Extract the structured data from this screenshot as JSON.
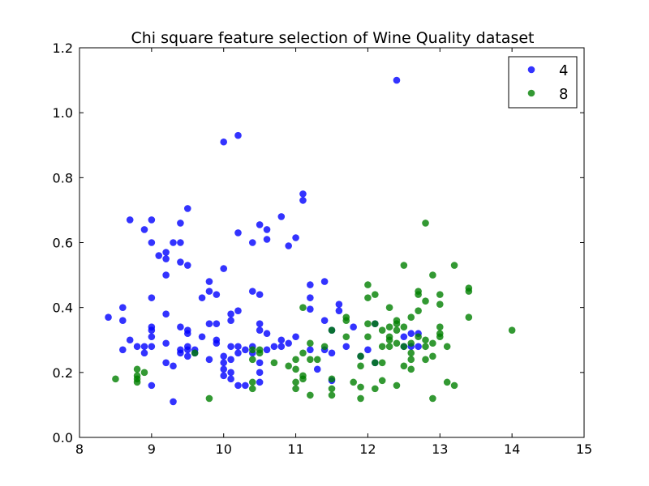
{
  "chart_data": {
    "type": "scatter",
    "title": "Chi square feature selection of Wine Quality dataset",
    "xlabel": "",
    "ylabel": "",
    "xlim": [
      8,
      15
    ],
    "ylim": [
      0.0,
      1.2
    ],
    "xticks": [
      "8",
      "9",
      "10",
      "11",
      "12",
      "13",
      "14",
      "15"
    ],
    "yticks": [
      "0.0",
      "0.2",
      "0.4",
      "0.6",
      "0.8",
      "1.0",
      "1.2"
    ],
    "grid": false,
    "legend_position": "top-right",
    "series": [
      {
        "name": "4",
        "color": "#0000ff",
        "points": [
          [
            8.4,
            0.37
          ],
          [
            8.6,
            0.4
          ],
          [
            8.6,
            0.36
          ],
          [
            8.6,
            0.27
          ],
          [
            8.7,
            0.67
          ],
          [
            8.7,
            0.3
          ],
          [
            8.8,
            0.28
          ],
          [
            8.9,
            0.64
          ],
          [
            8.9,
            0.28
          ],
          [
            8.9,
            0.26
          ],
          [
            9.0,
            0.67
          ],
          [
            9.0,
            0.6
          ],
          [
            9.0,
            0.43
          ],
          [
            9.0,
            0.34
          ],
          [
            9.0,
            0.33
          ],
          [
            9.0,
            0.31
          ],
          [
            9.0,
            0.28
          ],
          [
            9.0,
            0.16
          ],
          [
            9.1,
            0.56
          ],
          [
            9.2,
            0.57
          ],
          [
            9.2,
            0.55
          ],
          [
            9.2,
            0.5
          ],
          [
            9.2,
            0.38
          ],
          [
            9.2,
            0.29
          ],
          [
            9.2,
            0.23
          ],
          [
            9.3,
            0.6
          ],
          [
            9.3,
            0.22
          ],
          [
            9.3,
            0.11
          ],
          [
            9.4,
            0.66
          ],
          [
            9.4,
            0.6
          ],
          [
            9.4,
            0.54
          ],
          [
            9.4,
            0.34
          ],
          [
            9.4,
            0.27
          ],
          [
            9.4,
            0.26
          ],
          [
            9.5,
            0.705
          ],
          [
            9.5,
            0.53
          ],
          [
            9.5,
            0.33
          ],
          [
            9.5,
            0.32
          ],
          [
            9.5,
            0.28
          ],
          [
            9.5,
            0.27
          ],
          [
            9.5,
            0.25
          ],
          [
            9.6,
            0.27
          ],
          [
            9.6,
            0.26
          ],
          [
            9.7,
            0.43
          ],
          [
            9.7,
            0.31
          ],
          [
            9.8,
            0.48
          ],
          [
            9.8,
            0.45
          ],
          [
            9.8,
            0.35
          ],
          [
            9.8,
            0.24
          ],
          [
            9.9,
            0.44
          ],
          [
            9.9,
            0.35
          ],
          [
            9.9,
            0.3
          ],
          [
            9.9,
            0.29
          ],
          [
            10.0,
            0.91
          ],
          [
            10.0,
            0.52
          ],
          [
            10.0,
            0.25
          ],
          [
            10.0,
            0.23
          ],
          [
            10.0,
            0.21
          ],
          [
            10.0,
            0.19
          ],
          [
            10.1,
            0.38
          ],
          [
            10.1,
            0.36
          ],
          [
            10.1,
            0.28
          ],
          [
            10.1,
            0.24
          ],
          [
            10.1,
            0.2
          ],
          [
            10.1,
            0.18
          ],
          [
            10.2,
            0.93
          ],
          [
            10.2,
            0.63
          ],
          [
            10.2,
            0.39
          ],
          [
            10.2,
            0.28
          ],
          [
            10.2,
            0.26
          ],
          [
            10.2,
            0.16
          ],
          [
            10.3,
            0.27
          ],
          [
            10.3,
            0.16
          ],
          [
            10.4,
            0.6
          ],
          [
            10.4,
            0.45
          ],
          [
            10.4,
            0.28
          ],
          [
            10.4,
            0.26
          ],
          [
            10.5,
            0.655
          ],
          [
            10.5,
            0.44
          ],
          [
            10.5,
            0.35
          ],
          [
            10.5,
            0.33
          ],
          [
            10.5,
            0.23
          ],
          [
            10.5,
            0.2
          ],
          [
            10.5,
            0.17
          ],
          [
            10.6,
            0.64
          ],
          [
            10.6,
            0.61
          ],
          [
            10.6,
            0.32
          ],
          [
            10.6,
            0.27
          ],
          [
            10.7,
            0.28
          ],
          [
            10.8,
            0.68
          ],
          [
            10.8,
            0.3
          ],
          [
            10.8,
            0.28
          ],
          [
            10.9,
            0.59
          ],
          [
            10.9,
            0.29
          ],
          [
            11.0,
            0.615
          ],
          [
            11.0,
            0.31
          ],
          [
            11.1,
            0.75
          ],
          [
            11.1,
            0.73
          ],
          [
            11.2,
            0.47
          ],
          [
            11.2,
            0.43
          ],
          [
            11.2,
            0.395
          ],
          [
            11.2,
            0.27
          ],
          [
            11.3,
            0.21
          ],
          [
            11.4,
            0.48
          ],
          [
            11.4,
            0.36
          ],
          [
            11.4,
            0.27
          ],
          [
            11.5,
            0.33
          ],
          [
            11.5,
            0.26
          ],
          [
            11.5,
            0.175
          ],
          [
            11.6,
            0.41
          ],
          [
            11.6,
            0.39
          ],
          [
            11.7,
            0.28
          ],
          [
            11.8,
            0.34
          ],
          [
            11.9,
            0.25
          ],
          [
            12.0,
            0.27
          ],
          [
            12.1,
            0.35
          ],
          [
            12.1,
            0.23
          ],
          [
            12.4,
            1.1
          ],
          [
            12.5,
            0.31
          ],
          [
            12.5,
            0.28
          ],
          [
            12.6,
            0.32
          ],
          [
            12.6,
            0.28
          ],
          [
            12.7,
            0.32
          ],
          [
            12.7,
            0.28
          ]
        ]
      },
      {
        "name": "8",
        "color": "#008000",
        "points": [
          [
            8.5,
            0.18
          ],
          [
            8.8,
            0.21
          ],
          [
            8.8,
            0.19
          ],
          [
            8.8,
            0.18
          ],
          [
            8.8,
            0.17
          ],
          [
            8.9,
            0.2
          ],
          [
            9.6,
            0.26
          ],
          [
            9.8,
            0.12
          ],
          [
            10.4,
            0.27
          ],
          [
            10.4,
            0.24
          ],
          [
            10.4,
            0.17
          ],
          [
            10.4,
            0.15
          ],
          [
            10.5,
            0.27
          ],
          [
            10.5,
            0.26
          ],
          [
            10.7,
            0.23
          ],
          [
            10.9,
            0.22
          ],
          [
            11.0,
            0.24
          ],
          [
            11.0,
            0.21
          ],
          [
            11.0,
            0.17
          ],
          [
            11.0,
            0.15
          ],
          [
            11.1,
            0.4
          ],
          [
            11.1,
            0.26
          ],
          [
            11.1,
            0.19
          ],
          [
            11.1,
            0.18
          ],
          [
            11.2,
            0.29
          ],
          [
            11.2,
            0.24
          ],
          [
            11.2,
            0.13
          ],
          [
            11.3,
            0.24
          ],
          [
            11.4,
            0.28
          ],
          [
            11.5,
            0.33
          ],
          [
            11.5,
            0.18
          ],
          [
            11.5,
            0.15
          ],
          [
            11.5,
            0.13
          ],
          [
            11.7,
            0.37
          ],
          [
            11.7,
            0.36
          ],
          [
            11.7,
            0.31
          ],
          [
            11.8,
            0.17
          ],
          [
            11.9,
            0.25
          ],
          [
            11.9,
            0.22
          ],
          [
            11.9,
            0.155
          ],
          [
            11.9,
            0.12
          ],
          [
            12.0,
            0.47
          ],
          [
            12.0,
            0.43
          ],
          [
            12.0,
            0.35
          ],
          [
            12.0,
            0.31
          ],
          [
            12.1,
            0.44
          ],
          [
            12.1,
            0.35
          ],
          [
            12.1,
            0.23
          ],
          [
            12.1,
            0.15
          ],
          [
            12.2,
            0.33
          ],
          [
            12.2,
            0.28
          ],
          [
            12.2,
            0.23
          ],
          [
            12.2,
            0.175
          ],
          [
            12.3,
            0.4
          ],
          [
            12.3,
            0.34
          ],
          [
            12.3,
            0.31
          ],
          [
            12.3,
            0.3
          ],
          [
            12.3,
            0.28
          ],
          [
            12.4,
            0.36
          ],
          [
            12.4,
            0.35
          ],
          [
            12.4,
            0.33
          ],
          [
            12.4,
            0.29
          ],
          [
            12.4,
            0.16
          ],
          [
            12.5,
            0.53
          ],
          [
            12.5,
            0.34
          ],
          [
            12.5,
            0.28
          ],
          [
            12.5,
            0.22
          ],
          [
            12.6,
            0.37
          ],
          [
            12.6,
            0.29
          ],
          [
            12.6,
            0.26
          ],
          [
            12.6,
            0.24
          ],
          [
            12.6,
            0.21
          ],
          [
            12.7,
            0.45
          ],
          [
            12.7,
            0.44
          ],
          [
            12.7,
            0.39
          ],
          [
            12.7,
            0.31
          ],
          [
            12.8,
            0.66
          ],
          [
            12.8,
            0.42
          ],
          [
            12.8,
            0.3
          ],
          [
            12.8,
            0.28
          ],
          [
            12.8,
            0.24
          ],
          [
            12.9,
            0.5
          ],
          [
            12.9,
            0.29
          ],
          [
            12.9,
            0.25
          ],
          [
            12.9,
            0.12
          ],
          [
            13.0,
            0.44
          ],
          [
            13.0,
            0.41
          ],
          [
            13.0,
            0.34
          ],
          [
            13.0,
            0.32
          ],
          [
            13.0,
            0.31
          ],
          [
            13.1,
            0.28
          ],
          [
            13.1,
            0.17
          ],
          [
            13.2,
            0.53
          ],
          [
            13.2,
            0.16
          ],
          [
            13.4,
            0.46
          ],
          [
            13.4,
            0.45
          ],
          [
            13.4,
            0.37
          ],
          [
            14.0,
            0.33
          ]
        ]
      }
    ]
  }
}
